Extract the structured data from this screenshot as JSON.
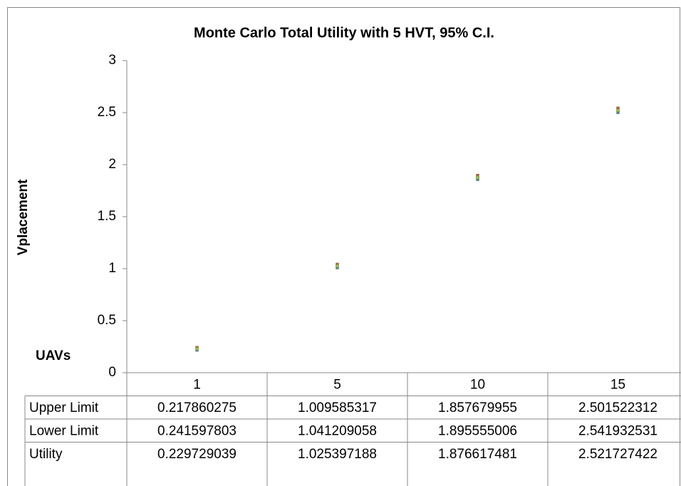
{
  "chart_data": {
    "type": "scatter",
    "title": "Monte Carlo Total Utility with 5 HVT, 95% C.I.",
    "y_label": "Vplacement",
    "x_label": "UAVs",
    "categories": [
      "1",
      "5",
      "10",
      "15"
    ],
    "series": [
      {
        "name": "Upper Limit",
        "color": "#4f81bd",
        "values": [
          0.217860275,
          1.009585317,
          1.857679955,
          2.501522312
        ]
      },
      {
        "name": "Lower Limit",
        "color": "#c0504d",
        "values": [
          0.241597803,
          1.041209058,
          1.895555006,
          2.541932531
        ]
      },
      {
        "name": "Utility",
        "color": "#9bbb59",
        "values": [
          0.229729039,
          1.025397188,
          1.876617481,
          2.521727422
        ]
      }
    ],
    "ylim": [
      0,
      3
    ],
    "yticks": [
      0,
      0.5,
      1,
      1.5,
      2,
      2.5,
      3
    ]
  }
}
